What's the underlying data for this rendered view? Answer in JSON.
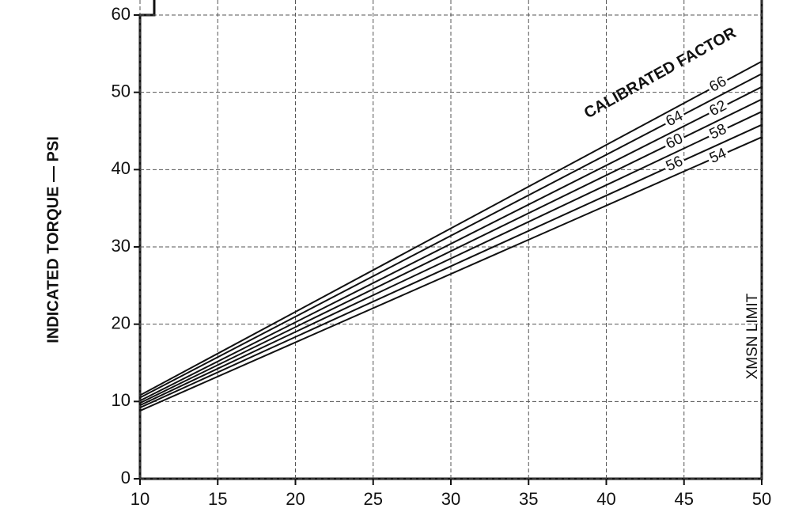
{
  "chart_data": {
    "type": "line",
    "y_label": "INDICATED TORQUE — PSI",
    "annotations": [
      "CALIBRATED FACTOR",
      "XMSN LIMIT"
    ],
    "x": [
      10,
      50
    ],
    "series": [
      {
        "name": "66",
        "color": "#111111",
        "values": [
          10.8,
          54.0
        ]
      },
      {
        "name": "64",
        "color": "#111111",
        "values": [
          10.5,
          52.4
        ]
      },
      {
        "name": "62",
        "color": "#111111",
        "values": [
          10.1,
          50.7
        ]
      },
      {
        "name": "60",
        "color": "#111111",
        "values": [
          9.8,
          49.1
        ]
      },
      {
        "name": "58",
        "color": "#111111",
        "values": [
          9.5,
          47.5
        ]
      },
      {
        "name": "56",
        "color": "#111111",
        "values": [
          9.2,
          45.8
        ]
      },
      {
        "name": "54",
        "color": "#111111",
        "values": [
          8.8,
          44.2
        ]
      }
    ],
    "xlim": [
      10,
      50
    ],
    "xticks": [
      10,
      15,
      20,
      25,
      30,
      35,
      40,
      45,
      50
    ],
    "ylim": [
      0,
      60
    ],
    "yticks": [
      0,
      10,
      20,
      30,
      40,
      50,
      60
    ],
    "grid": true
  }
}
